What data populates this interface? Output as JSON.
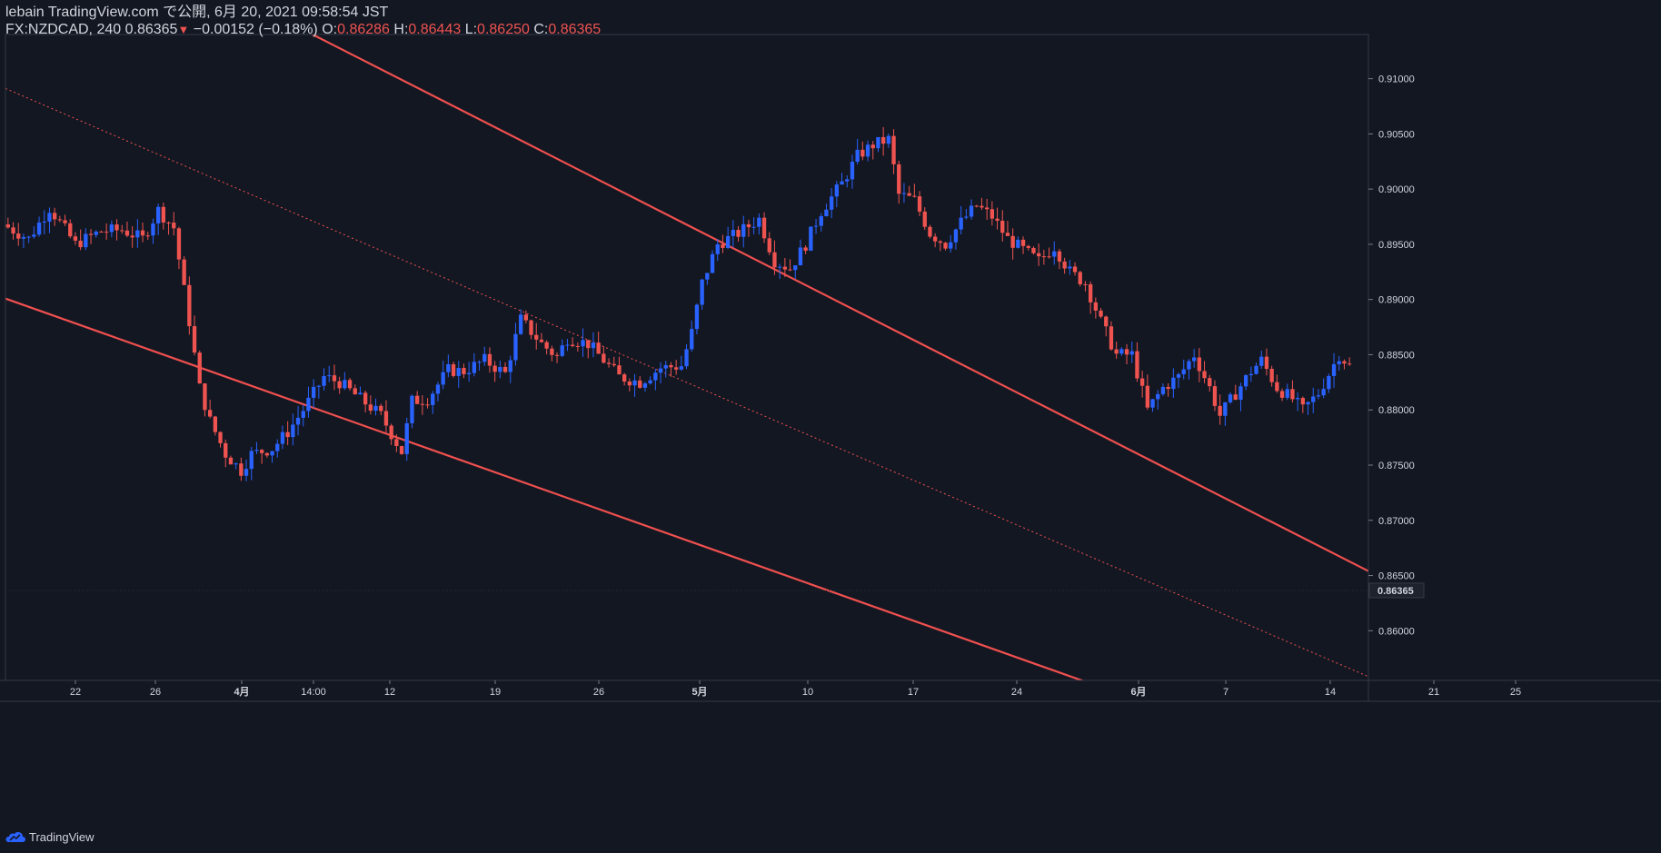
{
  "header": {
    "line1": "lebain TradingView.com で公開, 6月 20, 2021 09:58:54 JST",
    "symbol": "FX:NZDCAD, 240",
    "last": "0.86365",
    "change": "−0.00152 (−0.18%)",
    "o_label": "O:",
    "o_value": "0.86286",
    "h_label": "H:",
    "h_value": "0.86443",
    "l_label": "L:",
    "l_value": "0.86250",
    "c_label": "C:",
    "c_value": "0.86365"
  },
  "footer": {
    "brand": "TradingView"
  },
  "colors": {
    "background": "#131722",
    "up": "#2962ff",
    "down": "#ef5350",
    "channel": "#f0504f",
    "text": "#d1d4dc",
    "axis": "#363a45"
  },
  "chart_data": {
    "type": "candlestick",
    "symbol": "FX:NZDCAD",
    "interval": "240",
    "ylim": [
      0.8555,
      0.914
    ],
    "y_ticks": [
      0.86,
      0.865,
      0.87,
      0.875,
      0.88,
      0.885,
      0.89,
      0.895,
      0.9,
      0.905,
      0.91
    ],
    "y_tick_labels": [
      "0.86000",
      "0.86500",
      "0.87000",
      "0.87500",
      "0.88000",
      "0.88500",
      "0.89000",
      "0.89500",
      "0.90000",
      "0.90500",
      "0.91000"
    ],
    "current_price": 0.86365,
    "current_price_label": "0.86365",
    "x_labels": [
      "22",
      "26",
      "4月",
      "14:00",
      "12",
      "19",
      "26",
      "5月",
      "10",
      "17",
      "24",
      "6月",
      "7",
      "14",
      "21",
      "25"
    ],
    "candle_count": 260,
    "path": [
      [
        0,
        0.8968
      ],
      [
        5,
        0.8955
      ],
      [
        9,
        0.8983
      ],
      [
        14,
        0.895
      ],
      [
        19,
        0.8962
      ],
      [
        23,
        0.8963
      ],
      [
        27,
        0.8955
      ],
      [
        30,
        0.8981
      ],
      [
        33,
        0.8965
      ],
      [
        36,
        0.888
      ],
      [
        38,
        0.882
      ],
      [
        40,
        0.879
      ],
      [
        43,
        0.876
      ],
      [
        46,
        0.8745
      ],
      [
        48,
        0.876
      ],
      [
        52,
        0.8765
      ],
      [
        55,
        0.878
      ],
      [
        58,
        0.88
      ],
      [
        62,
        0.883
      ],
      [
        65,
        0.8825
      ],
      [
        69,
        0.881
      ],
      [
        73,
        0.8795
      ],
      [
        77,
        0.8762
      ],
      [
        79,
        0.8808
      ],
      [
        82,
        0.881
      ],
      [
        86,
        0.8836
      ],
      [
        89,
        0.8835
      ],
      [
        93,
        0.8845
      ],
      [
        97,
        0.8833
      ],
      [
        100,
        0.8882
      ],
      [
        104,
        0.886
      ],
      [
        107,
        0.8848
      ],
      [
        109,
        0.8865
      ],
      [
        113,
        0.886
      ],
      [
        116,
        0.8845
      ],
      [
        119,
        0.883
      ],
      [
        123,
        0.8825
      ],
      [
        127,
        0.8838
      ],
      [
        131,
        0.884
      ],
      [
        133,
        0.887
      ],
      [
        135,
        0.8915
      ],
      [
        138,
        0.895
      ],
      [
        142,
        0.896
      ],
      [
        146,
        0.8973
      ],
      [
        149,
        0.8935
      ],
      [
        152,
        0.8928
      ],
      [
        155,
        0.895
      ],
      [
        158,
        0.898
      ],
      [
        162,
        0.9005
      ],
      [
        165,
        0.903
      ],
      [
        168,
        0.904
      ],
      [
        171,
        0.9045
      ],
      [
        173,
        0.8995
      ],
      [
        176,
        0.899
      ],
      [
        179,
        0.896
      ],
      [
        182,
        0.895
      ],
      [
        185,
        0.897
      ],
      [
        188,
        0.8985
      ],
      [
        191,
        0.8975
      ],
      [
        194,
        0.8955
      ],
      [
        197,
        0.8945
      ],
      [
        200,
        0.8935
      ],
      [
        203,
        0.8948
      ],
      [
        206,
        0.8925
      ],
      [
        209,
        0.8915
      ],
      [
        212,
        0.888
      ],
      [
        215,
        0.885
      ],
      [
        218,
        0.885
      ],
      [
        221,
        0.88
      ],
      [
        224,
        0.882
      ],
      [
        227,
        0.883
      ],
      [
        230,
        0.885
      ],
      [
        233,
        0.882
      ],
      [
        235,
        0.8795
      ],
      [
        238,
        0.8815
      ],
      [
        241,
        0.8835
      ],
      [
        243,
        0.8845
      ],
      [
        246,
        0.882
      ],
      [
        249,
        0.881
      ],
      [
        251,
        0.88
      ],
      [
        254,
        0.8815
      ],
      [
        258,
        0.885
      ],
      [
        260,
        0.884
      ]
    ]
  }
}
